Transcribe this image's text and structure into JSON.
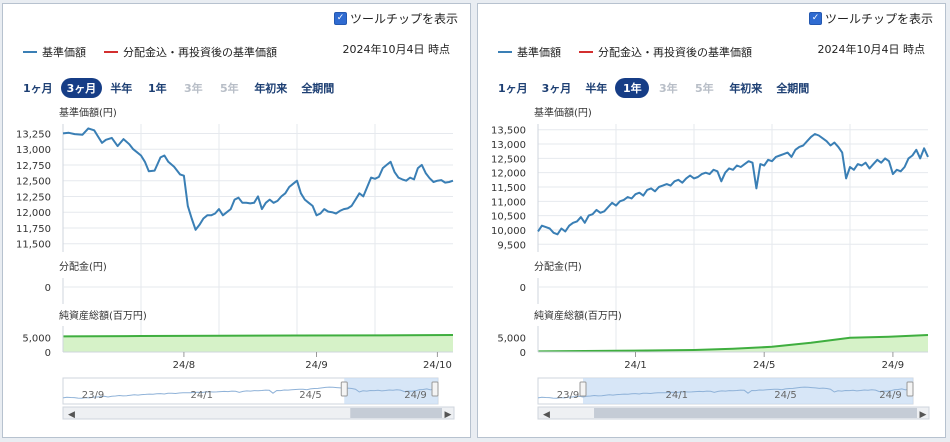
{
  "panels": [
    {
      "tooltip_label": "ツールチップを表示",
      "legend": [
        {
          "label": "基準価額",
          "color": "#3a7fb5"
        },
        {
          "label": "分配金込・再投資後の基準価額",
          "color": "#d32f2f"
        }
      ],
      "as_of": "2024年10月4日 時点",
      "ranges": [
        {
          "label": "1ヶ月",
          "state": "normal"
        },
        {
          "label": "3ヶ月",
          "state": "active"
        },
        {
          "label": "半年",
          "state": "normal"
        },
        {
          "label": "1年",
          "state": "normal"
        },
        {
          "label": "3年",
          "state": "disabled"
        },
        {
          "label": "5年",
          "state": "disabled"
        },
        {
          "label": "年初来",
          "state": "normal"
        },
        {
          "label": "全期間",
          "state": "normal"
        }
      ]
    },
    {
      "tooltip_label": "ツールチップを表示",
      "legend": [
        {
          "label": "基準価額",
          "color": "#3a7fb5"
        },
        {
          "label": "分配金込・再投資後の基準価額",
          "color": "#d32f2f"
        }
      ],
      "as_of": "2024年10月4日 時点",
      "ranges": [
        {
          "label": "1ヶ月",
          "state": "normal"
        },
        {
          "label": "3ヶ月",
          "state": "normal"
        },
        {
          "label": "半年",
          "state": "normal"
        },
        {
          "label": "1年",
          "state": "active"
        },
        {
          "label": "3年",
          "state": "disabled"
        },
        {
          "label": "5年",
          "state": "disabled"
        },
        {
          "label": "年初来",
          "state": "normal"
        },
        {
          "label": "全期間",
          "state": "normal"
        }
      ]
    }
  ],
  "chart_data": [
    {
      "type": "line",
      "price": {
        "label": "基準価額(円)",
        "x_range": [
          0,
          100
        ],
        "ylim": [
          11400,
          13400
        ],
        "yticks": [
          "13,250",
          "13,000",
          "12,750",
          "12,500",
          "12,250",
          "12,000",
          "11,750",
          "11,500"
        ],
        "ytick_values": [
          13250,
          13000,
          12750,
          12500,
          12250,
          12000,
          11750,
          11500
        ],
        "series": [
          {
            "name": "基準価額",
            "color": "#3a7fb5",
            "x": [
              0,
              1.5,
              3,
              5,
              6.5,
              8,
              9,
              10,
              11,
              12.5,
              14,
              15.5,
              17,
              18,
              19,
              20,
              21,
              22,
              23.5,
              25,
              26,
              27,
              28.5,
              30,
              31,
              32,
              33,
              34,
              35,
              36,
              37,
              38,
              39,
              40,
              41,
              42,
              43,
              44,
              45,
              46,
              47,
              48,
              49,
              50,
              51,
              52,
              53,
              54,
              55,
              56,
              57,
              58,
              59,
              60,
              61,
              62,
              63,
              64,
              65,
              66,
              67,
              68,
              69,
              70,
              71,
              72,
              73,
              74,
              75,
              76,
              77,
              78,
              79,
              80,
              81,
              82,
              83,
              84,
              85,
              86,
              87,
              88,
              89,
              90,
              91,
              92,
              93,
              94,
              95,
              96,
              97,
              98,
              99,
              100
            ],
            "y": [
              13250,
              13260,
              13240,
              13230,
              13330,
              13300,
              13200,
              13100,
              13150,
              13180,
              13050,
              13160,
              13080,
              13000,
              12950,
              12900,
              12800,
              12650,
              12660,
              12870,
              12900,
              12800,
              12720,
              12600,
              12580,
              12100,
              11900,
              11720,
              11800,
              11900,
              11950,
              11950,
              11980,
              12050,
              11950,
              12000,
              12050,
              12200,
              12230,
              12150,
              12150,
              12140,
              12150,
              12250,
              12050,
              12150,
              12200,
              12150,
              12180,
              12250,
              12300,
              12400,
              12450,
              12500,
              12300,
              12200,
              12150,
              12100,
              11950,
              11980,
              12050,
              12010,
              12000,
              11980,
              12020,
              12050,
              12060,
              12100,
              12200,
              12300,
              12250,
              12400,
              12550,
              12530,
              12560,
              12700,
              12750,
              12800,
              12640,
              12550,
              12520,
              12500,
              12550,
              12520,
              12700,
              12750,
              12620,
              12540,
              12480,
              12500,
              12510,
              12470,
              12480,
              12500
            ]
          }
        ]
      },
      "distribution": {
        "label": "分配金(円)",
        "yticks": [
          "0"
        ],
        "values": []
      },
      "net_assets": {
        "label": "純資産総額(百万円)",
        "yticks": [
          "5,000",
          "0"
        ],
        "ytick_values": [
          5000,
          0
        ],
        "ylim": [
          0,
          9000
        ],
        "x": [
          0,
          20,
          40,
          60,
          80,
          100
        ],
        "values": [
          5400,
          5550,
          5600,
          5700,
          5750,
          5900
        ]
      },
      "xaxis": {
        "ticks": [
          {
            "label": "24/8",
            "x": 31
          },
          {
            "label": "24/9",
            "x": 65
          },
          {
            "label": "24/10",
            "x": 96
          }
        ]
      },
      "navigator": {
        "ticks": [
          {
            "label": "23/9",
            "x": 8
          },
          {
            "label": "24/1",
            "x": 37
          },
          {
            "label": "24/5",
            "x": 66
          },
          {
            "label": "24/9",
            "x": 94
          }
        ],
        "selection": [
          75,
          100
        ]
      }
    },
    {
      "type": "line",
      "price": {
        "label": "基準価額(円)",
        "x_range": [
          0,
          100
        ],
        "ylim": [
          9300,
          13700
        ],
        "yticks": [
          "13,500",
          "13,000",
          "12,500",
          "12,000",
          "11,500",
          "11,000",
          "10,500",
          "10,000",
          "9,500"
        ],
        "ytick_values": [
          13500,
          13000,
          12500,
          12000,
          11500,
          11000,
          10500,
          10000,
          9500
        ],
        "series": [
          {
            "name": "基準価額",
            "color": "#3a7fb5",
            "x": [
              0,
              1,
              2,
              3,
              4,
              5,
              6,
              7,
              8,
              9,
              10,
              11,
              12,
              13,
              14,
              15,
              16,
              17,
              18,
              19,
              20,
              21,
              22,
              23,
              24,
              25,
              26,
              27,
              28,
              29,
              30,
              31,
              32,
              33,
              34,
              35,
              36,
              37,
              38,
              39,
              40,
              41,
              42,
              43,
              44,
              45,
              46,
              47,
              48,
              49,
              50,
              51,
              52,
              53,
              54,
              55,
              56,
              57,
              58,
              59,
              60,
              61,
              62,
              63,
              64,
              65,
              66,
              67,
              68,
              69,
              70,
              71,
              72,
              73,
              74,
              75,
              76,
              77,
              78,
              79,
              80,
              81,
              82,
              83,
              84,
              85,
              86,
              87,
              88,
              89,
              90,
              91,
              92,
              93,
              94,
              95,
              96,
              97,
              98,
              99,
              100
            ],
            "y": [
              9950,
              10150,
              10100,
              10050,
              9900,
              9850,
              10050,
              9950,
              10150,
              10250,
              10300,
              10450,
              10250,
              10500,
              10550,
              10700,
              10600,
              10650,
              10800,
              10950,
              10850,
              11000,
              11050,
              11150,
              11100,
              11250,
              11300,
              11200,
              11400,
              11450,
              11350,
              11500,
              11550,
              11600,
              11550,
              11700,
              11750,
              11650,
              11800,
              11900,
              11800,
              11850,
              11950,
              12000,
              11950,
              12100,
              12050,
              11700,
              12000,
              12150,
              12100,
              12250,
              12200,
              12300,
              12400,
              12350,
              11450,
              12300,
              12250,
              12450,
              12400,
              12550,
              12600,
              12650,
              12700,
              12550,
              12800,
              12900,
              12950,
              13100,
              13250,
              13350,
              13300,
              13200,
              13100,
              12950,
              13050,
              12900,
              12700,
              11800,
              12200,
              12100,
              12300,
              12250,
              12350,
              12150,
              12300,
              12450,
              12350,
              12500,
              12400,
              11950,
              12100,
              12050,
              12200,
              12500,
              12600,
              12800,
              12500,
              12850,
              12550
            ]
          }
        ]
      },
      "distribution": {
        "label": "分配金(円)",
        "yticks": [
          "0"
        ],
        "values": []
      },
      "net_assets": {
        "label": "純資産総額(百万円)",
        "yticks": [
          "5,000",
          "0"
        ],
        "ytick_values": [
          5000,
          0
        ],
        "ylim": [
          0,
          9000
        ],
        "x": [
          0,
          20,
          40,
          50,
          60,
          70,
          80,
          90,
          100
        ],
        "values": [
          200,
          400,
          700,
          1100,
          1800,
          3200,
          4900,
          5300,
          5900
        ]
      },
      "xaxis": {
        "ticks": [
          {
            "label": "24/1",
            "x": 25
          },
          {
            "label": "24/5",
            "x": 58
          },
          {
            "label": "24/9",
            "x": 91
          }
        ]
      },
      "navigator": {
        "ticks": [
          {
            "label": "23/9",
            "x": 8
          },
          {
            "label": "24/1",
            "x": 37
          },
          {
            "label": "24/5",
            "x": 66
          },
          {
            "label": "24/9",
            "x": 94
          }
        ],
        "selection": [
          12,
          100
        ]
      }
    }
  ]
}
